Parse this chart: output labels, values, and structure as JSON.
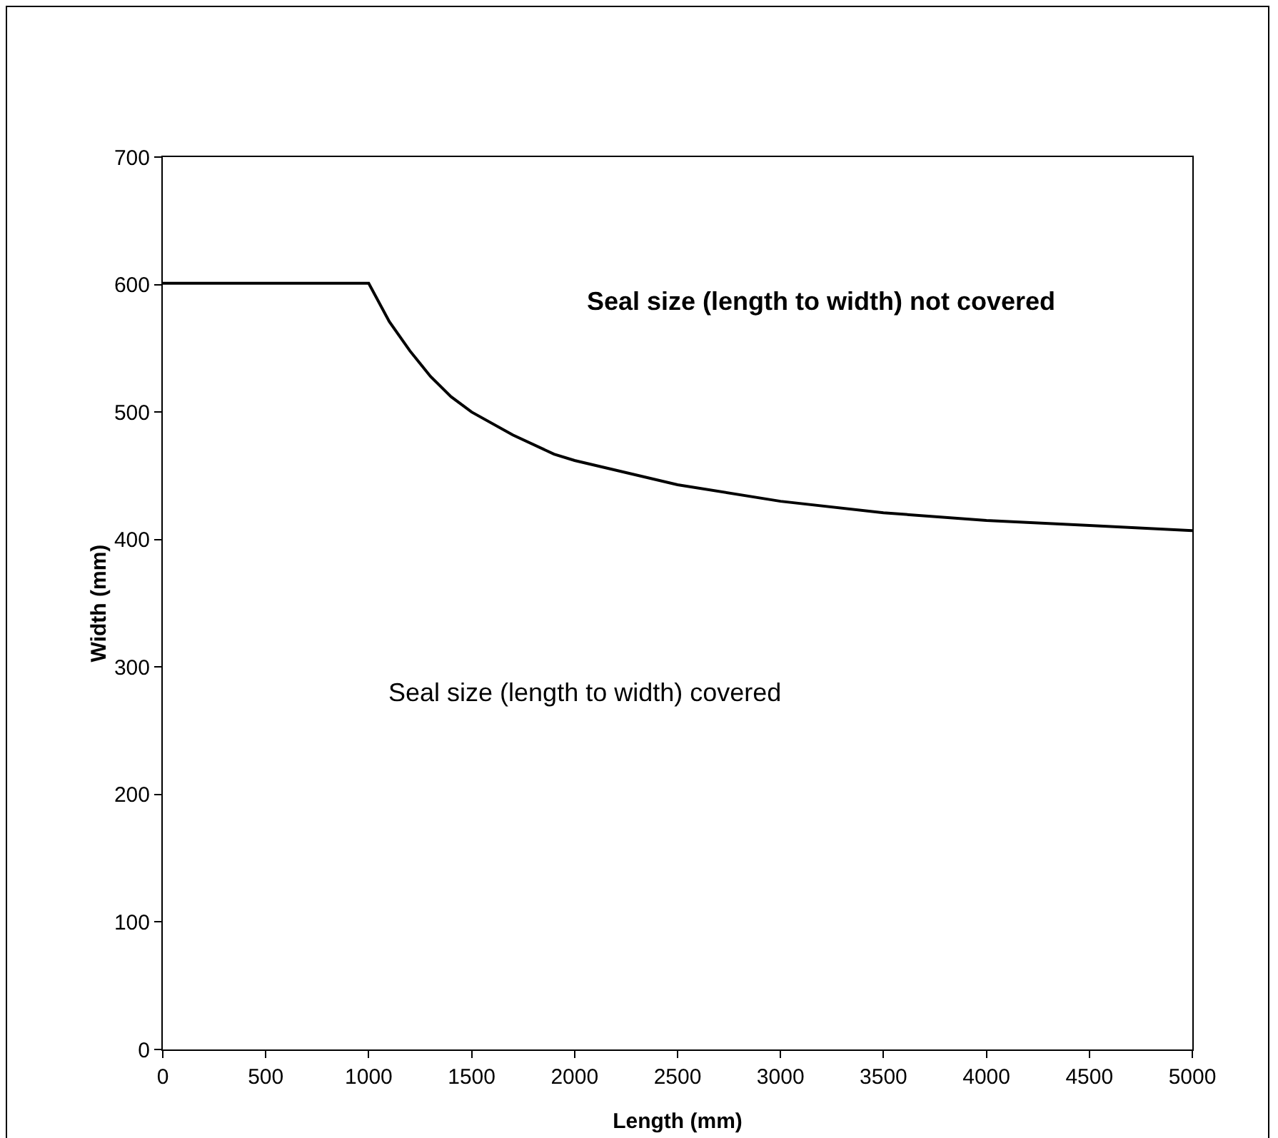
{
  "chart_data": {
    "type": "line",
    "xlabel": "Length (mm)",
    "ylabel": "Width (mm)",
    "x": [
      0,
      1000,
      1100,
      1200,
      1300,
      1400,
      1500,
      1700,
      1900,
      2000,
      2500,
      3000,
      3500,
      4000,
      4500,
      5000
    ],
    "series": [
      {
        "color": "#000000",
        "values": [
          601,
          601,
          571,
          548,
          528,
          512,
          500,
          482,
          467,
          462,
          443,
          430,
          421,
          415,
          411,
          407
        ]
      }
    ],
    "xlim": [
      0,
      5000
    ],
    "xticks": [
      0,
      500,
      1000,
      1500,
      2000,
      2500,
      3000,
      3500,
      4000,
      4500,
      5000
    ],
    "ylim": [
      0,
      700
    ],
    "yticks": [
      0,
      100,
      200,
      300,
      400,
      500,
      600,
      700
    ],
    "grid": false,
    "marker": "none",
    "line_style": "solid",
    "annotations": [
      "Seal size (length to width) not covered",
      "Seal size (length to width) covered"
    ]
  }
}
